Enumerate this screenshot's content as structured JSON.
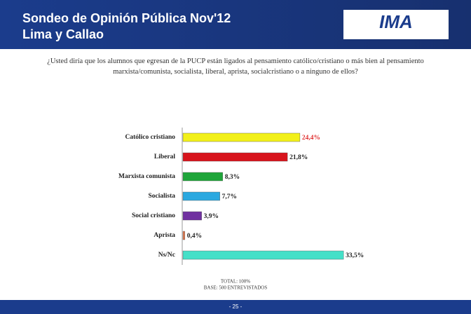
{
  "header": {
    "title": "Sondeo de Opinión Pública Nov'12",
    "subtitle": "Lima y Callao",
    "logo": "IMA"
  },
  "chart_data": {
    "type": "bar",
    "orientation": "horizontal",
    "title": "¿Usted diría que los alumnos que egresan de la PUCP están ligados al pensamiento católico/cristiano o más bien al pensamiento marxista/comunista, socialista, liberal, aprista, socialcristiano o a ninguno de ellos?",
    "categories": [
      "Católico cristiano",
      "Liberal",
      "Marxista comunista",
      "Socialista",
      "Social cristiano",
      "Aprista",
      "Ns/Nc"
    ],
    "values": [
      24.4,
      21.8,
      8.3,
      7.7,
      3.9,
      0.4,
      33.5
    ],
    "value_labels": [
      "24,4%",
      "21,8%",
      "8,3%",
      "7,7%",
      "3,9%",
      "0,4%",
      "33,5%"
    ],
    "colors": [
      "#f2f01a",
      "#d8141c",
      "#1fa53a",
      "#2aa8e0",
      "#7030a0",
      "#e07a50",
      "#45e0c8"
    ],
    "notes": [
      "TOTAL: 100%",
      "BASE: 500 ENTREVISTADOS"
    ]
  },
  "footer": {
    "page": "- 25 -"
  }
}
